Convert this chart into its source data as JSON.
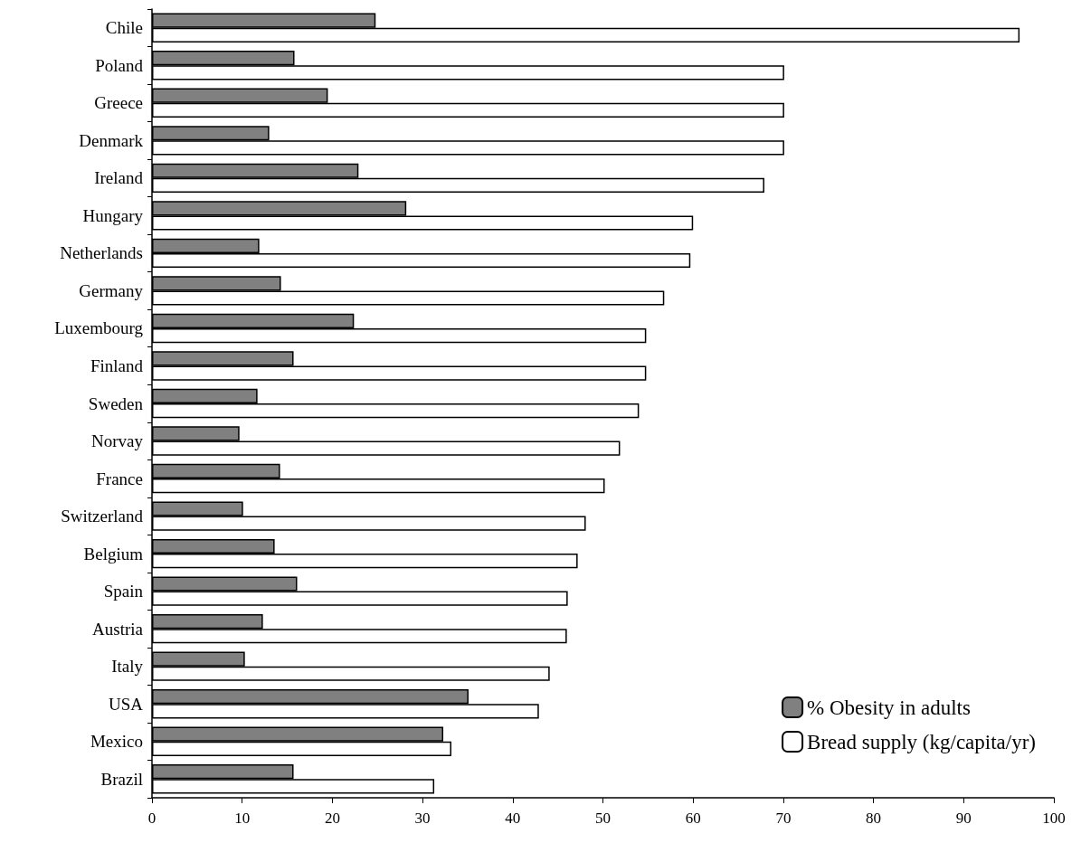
{
  "chart_data": {
    "type": "bar",
    "orientation": "horizontal",
    "categories": [
      "Chile",
      "Poland",
      "Greece",
      "Denmark",
      "Ireland",
      "Hungary",
      "Netherlands",
      "Germany",
      "Luxembourg",
      "Finland",
      "Sweden",
      "Norvay",
      "France",
      "Switzerland",
      "Belgium",
      "Spain",
      "Austria",
      "Italy",
      "USA",
      "Mexico",
      "Brazil"
    ],
    "series": [
      {
        "name": "% Obesity in adults",
        "color": "#808080",
        "values": [
          24.8,
          15.8,
          19.5,
          13.0,
          22.9,
          28.2,
          11.9,
          14.3,
          22.4,
          15.7,
          11.7,
          9.7,
          14.2,
          10.1,
          13.6,
          16.1,
          12.3,
          10.3,
          35.1,
          32.3,
          15.7
        ]
      },
      {
        "name": "Bread supply (kg/capita/yr)",
        "color": "#ffffff",
        "values": [
          96.2,
          70.1,
          70.1,
          70.1,
          67.9,
          60.0,
          59.7,
          56.8,
          54.8,
          54.8,
          54.0,
          51.9,
          50.2,
          48.1,
          47.2,
          46.1,
          46.0,
          44.1,
          42.9,
          33.2,
          31.3
        ]
      }
    ],
    "xlim": [
      0,
      100
    ],
    "xticks": [
      0,
      10,
      20,
      30,
      40,
      50,
      60,
      70,
      80,
      90,
      100
    ],
    "grid": false,
    "legend": "bottom right"
  }
}
